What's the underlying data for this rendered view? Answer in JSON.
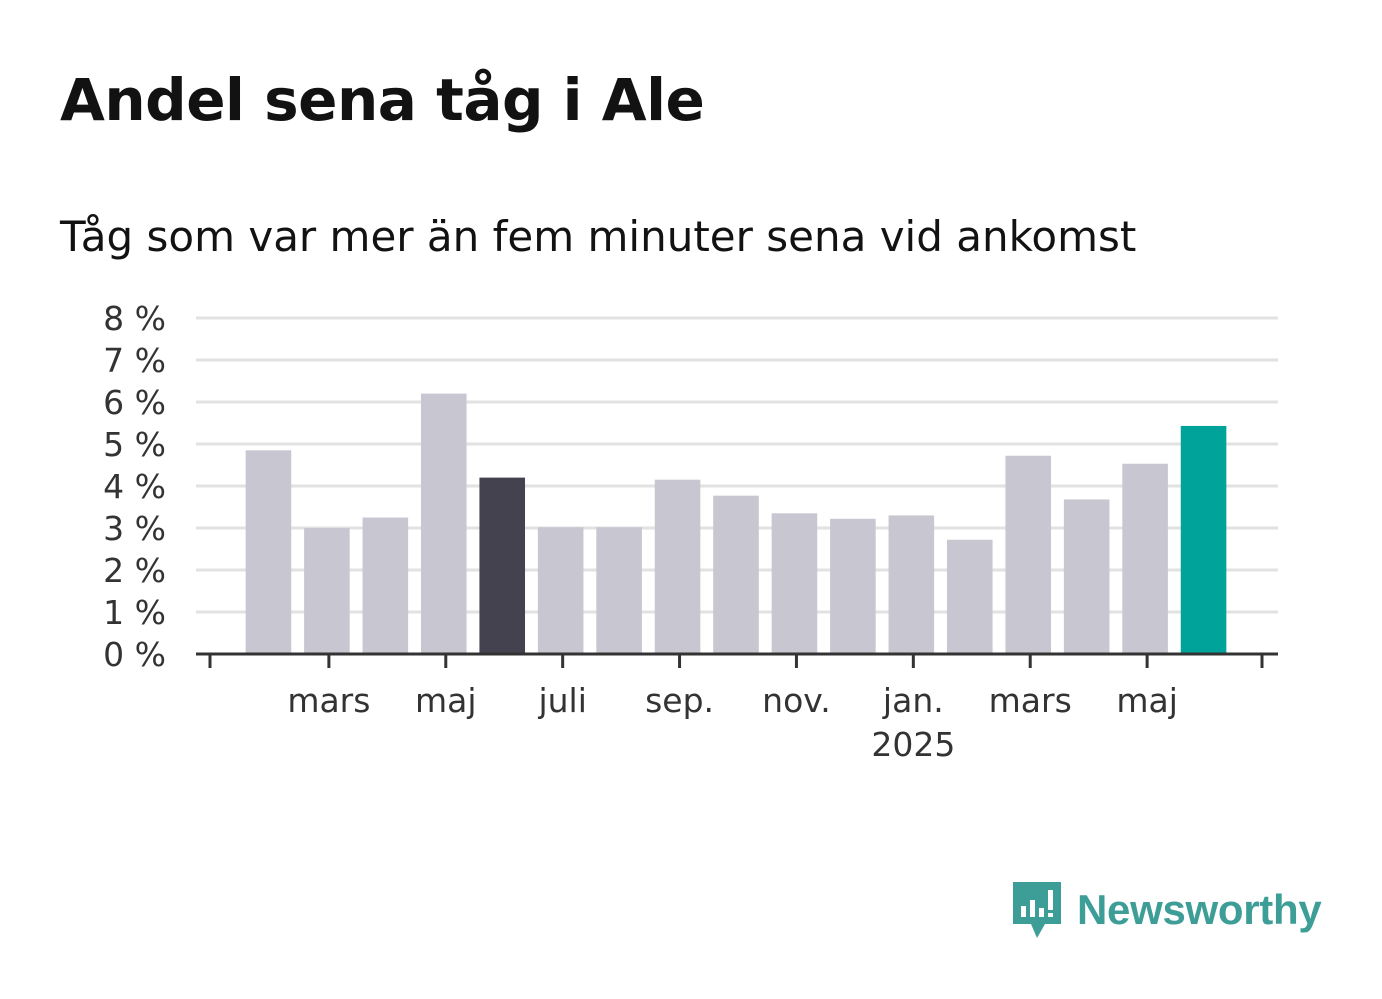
{
  "header": {
    "title": "Andel sena tåg i Ale",
    "subtitle": "Tåg som var mer än fem minuter sena vid ankomst"
  },
  "brand": {
    "name": "Newsworthy",
    "color": "#3d9d97"
  },
  "colors": {
    "default_bar": "#c8c7d1",
    "highlight_bar": "#44424e",
    "latest_bar": "#00a39a",
    "grid": "#e2e2e2",
    "axis": "#333333"
  },
  "chart_data": {
    "type": "bar",
    "title": "Andel sena tåg i Ale",
    "subtitle": "Tåg som var mer än fem minuter sena vid ankomst",
    "xlabel": "",
    "ylabel": "",
    "ylim": [
      0,
      8
    ],
    "y_ticks": [
      "0 %",
      "1 %",
      "2 %",
      "3 %",
      "4 %",
      "5 %",
      "6 %",
      "7 %",
      "8 %"
    ],
    "x_ticks": [
      {
        "month": 3,
        "label": "mars",
        "sub": ""
      },
      {
        "month": 5,
        "label": "maj",
        "sub": ""
      },
      {
        "month": 7,
        "label": "juli",
        "sub": ""
      },
      {
        "month": 9,
        "label": "sep.",
        "sub": ""
      },
      {
        "month": 11,
        "label": "nov.",
        "sub": ""
      },
      {
        "month": 13,
        "label": "jan.",
        "sub": "2025"
      },
      {
        "month": 15,
        "label": "mars",
        "sub": ""
      },
      {
        "month": 17,
        "label": "maj",
        "sub": ""
      }
    ],
    "grid": true,
    "values": [
      4.85,
      3.0,
      3.25,
      6.2,
      4.2,
      3.02,
      3.02,
      4.15,
      3.77,
      3.35,
      3.22,
      3.3,
      2.72,
      4.72,
      3.68,
      4.53,
      5.43
    ],
    "highlight": [
      {
        "index": 4,
        "color": "#44424e"
      },
      {
        "index": 16,
        "color": "#00a39a"
      }
    ]
  }
}
